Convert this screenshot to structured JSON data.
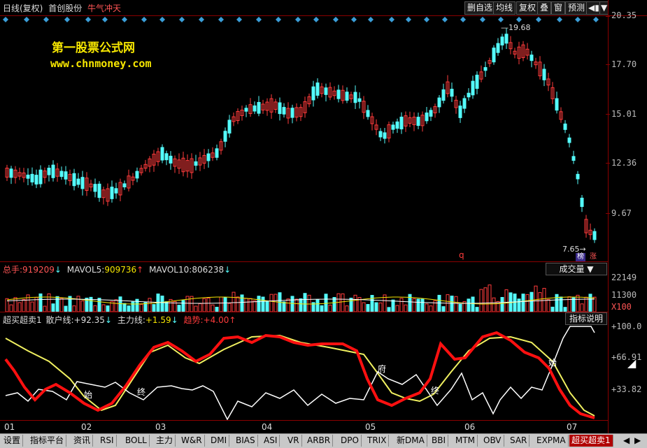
{
  "header": {
    "period": "日线(复权)",
    "stock": "首创股份",
    "strategy": "牛气冲天",
    "buttons": [
      "删自选",
      "均线",
      "复权",
      "叠",
      "窗",
      "预测"
    ]
  },
  "watermark": {
    "title": "第一股票公式网",
    "url": "www.chnmoney.com"
  },
  "price_axis": [
    "20.35",
    "17.70",
    "15.01",
    "12.36",
    "9.67"
  ],
  "price_marks": {
    "high": "19.68",
    "low": "7.65",
    "q": "q"
  },
  "corner_badges": [
    "榜",
    "涨"
  ],
  "volume_panel": {
    "total_label": "总手:",
    "total_value": "919209",
    "mavol5_label": "MAVOL5:",
    "mavol5_value": "909736",
    "mavol10_label": "MAVOL10:",
    "mavol10_value": "806238",
    "dropdown": "成交量",
    "axis": [
      "22149",
      "11300",
      "X100"
    ]
  },
  "indicator_panel": {
    "name": "超买超卖1",
    "retail_label": "散户线:",
    "retail_value": "+92.35",
    "main_label": "主力线:",
    "main_value": "+1.59",
    "trend_label": "趋势:",
    "trend_value": "+4.00",
    "help_button": "指标说明",
    "axis": [
      "+100.0",
      "+66.91",
      "+33.82"
    ],
    "markers": [
      "始",
      "终",
      "终",
      "始"
    ]
  },
  "x_axis": [
    "01",
    "02",
    "03",
    "04",
    "05",
    "06",
    "07"
  ],
  "tabs": [
    "设置",
    "指标平台",
    "资讯",
    "RSI",
    "BOLL",
    "主力",
    "W&R",
    "DMI",
    "BIAS",
    "ASI",
    "VR",
    "ARBR",
    "DPO",
    "TRIX",
    "新DMA",
    "BBI",
    "MTM",
    "OBV",
    "SAR",
    "EXPMA",
    "超买超卖1"
  ],
  "colors": {
    "up": "#ff3b3b",
    "down": "#54fcfc",
    "frame": "#8a0000",
    "main_line": "#ff1010",
    "retail_line": "#ffffff",
    "trend_line": "#f0f060",
    "watermark": "#f6e600"
  }
}
